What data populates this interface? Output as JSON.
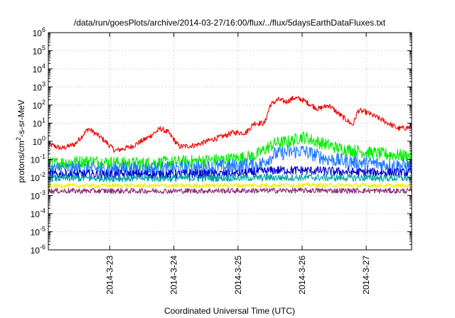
{
  "chart_data": {
    "type": "line",
    "title": "/data/run/goesPlots/archive/2014-03-27/16:00/flux/../flux/5daysEarthDataFluxes.txt",
    "xlabel": "Coordinated Universal Time (UTC)",
    "ylabel_main": "protons/cm",
    "ylabel_sup": "2",
    "ylabel_rest": "-s-sr-MeV",
    "yscale": "log",
    "ylim": [
      1e-06,
      1000000.0
    ],
    "grid": true,
    "xlim": [
      "2014-03-22T01:00",
      "2014-03-27T17:00"
    ],
    "x_ticks": [
      {
        "label": "2014-3-23",
        "t": "2014-03-23T00:00"
      },
      {
        "label": "2014-3-24",
        "t": "2014-03-24T00:00"
      },
      {
        "label": "2014-3-25",
        "t": "2014-03-25T00:00"
      },
      {
        "label": "2014-3-26",
        "t": "2014-03-26T00:00"
      },
      {
        "label": "2014-3-27",
        "t": "2014-03-27T00:00"
      }
    ],
    "y_ticks": [
      {
        "base": "10",
        "exp": "-6"
      },
      {
        "base": "10",
        "exp": "-5"
      },
      {
        "base": "10",
        "exp": "-4"
      },
      {
        "base": "10",
        "exp": "-3"
      },
      {
        "base": "10",
        "exp": "-2"
      },
      {
        "base": "10",
        "exp": "-1"
      },
      {
        "base": "10",
        "exp": "0"
      },
      {
        "base": "10",
        "exp": "1"
      },
      {
        "base": "10",
        "exp": "2"
      },
      {
        "base": "10",
        "exp": "3"
      },
      {
        "base": "10",
        "exp": "4"
      },
      {
        "base": "10",
        "exp": "5"
      },
      {
        "base": "10",
        "exp": "6"
      }
    ],
    "series": [
      {
        "color": "#ee0000",
        "noise": 0.15,
        "points": [
          [
            "2014-03-22T01:00",
            0.7
          ],
          [
            "2014-03-22T06:00",
            0.4
          ],
          [
            "2014-03-22T11:00",
            0.7
          ],
          [
            "2014-03-22T16:00",
            5
          ],
          [
            "2014-03-22T21:00",
            1.5
          ],
          [
            "2014-03-23T02:00",
            0.3
          ],
          [
            "2014-03-23T08:00",
            0.5
          ],
          [
            "2014-03-23T14:00",
            1.5
          ],
          [
            "2014-03-23T19:00",
            5
          ],
          [
            "2014-03-23T22:00",
            3
          ],
          [
            "2014-03-24T02:00",
            0.5
          ],
          [
            "2014-03-24T08:00",
            0.6
          ],
          [
            "2014-03-24T14:00",
            1.2
          ],
          [
            "2014-03-24T19:00",
            2
          ],
          [
            "2014-03-24T22:00",
            3
          ],
          [
            "2014-03-25T03:00",
            3
          ],
          [
            "2014-03-25T06:00",
            10
          ],
          [
            "2014-03-25T10:00",
            10
          ],
          [
            "2014-03-25T12:00",
            100
          ],
          [
            "2014-03-25T15:00",
            200
          ],
          [
            "2014-03-25T18:00",
            150
          ],
          [
            "2014-03-25T21:00",
            250
          ],
          [
            "2014-03-26T00:00",
            200
          ],
          [
            "2014-03-26T06:00",
            60
          ],
          [
            "2014-03-26T10:00",
            100
          ],
          [
            "2014-03-26T14:00",
            30
          ],
          [
            "2014-03-26T19:00",
            8
          ],
          [
            "2014-03-26T21:00",
            50
          ],
          [
            "2014-03-27T00:00",
            40
          ],
          [
            "2014-03-27T06:00",
            15
          ],
          [
            "2014-03-27T12:00",
            5
          ],
          [
            "2014-03-27T17:00",
            6
          ]
        ]
      },
      {
        "color": "#00ee00",
        "noise": 0.35,
        "points": [
          [
            "2014-03-22T01:00",
            0.06
          ],
          [
            "2014-03-22T16:00",
            0.08
          ],
          [
            "2014-03-23T08:00",
            0.06
          ],
          [
            "2014-03-24T00:00",
            0.07
          ],
          [
            "2014-03-24T20:00",
            0.1
          ],
          [
            "2014-03-25T06:00",
            0.15
          ],
          [
            "2014-03-25T14:00",
            0.8
          ],
          [
            "2014-03-25T20:00",
            1.0
          ],
          [
            "2014-03-26T00:00",
            1.8
          ],
          [
            "2014-03-26T06:00",
            0.9
          ],
          [
            "2014-03-26T14:00",
            0.4
          ],
          [
            "2014-03-26T20:00",
            0.3
          ],
          [
            "2014-03-27T06:00",
            0.2
          ],
          [
            "2014-03-27T17:00",
            0.15
          ]
        ]
      },
      {
        "color": "#1e78ff",
        "noise": 0.4,
        "points": [
          [
            "2014-03-22T01:00",
            0.03
          ],
          [
            "2014-03-23T00:00",
            0.03
          ],
          [
            "2014-03-24T00:00",
            0.03
          ],
          [
            "2014-03-24T20:00",
            0.04
          ],
          [
            "2014-03-25T08:00",
            0.05
          ],
          [
            "2014-03-25T14:00",
            0.2
          ],
          [
            "2014-03-26T00:00",
            0.3
          ],
          [
            "2014-03-26T10:00",
            0.1
          ],
          [
            "2014-03-26T20:00",
            0.07
          ],
          [
            "2014-03-27T17:00",
            0.04
          ]
        ]
      },
      {
        "color": "#0000cc",
        "noise": 0.25,
        "points": [
          [
            "2014-03-22T01:00",
            0.015
          ],
          [
            "2014-03-23T12:00",
            0.015
          ],
          [
            "2014-03-25T00:00",
            0.016
          ],
          [
            "2014-03-25T14:00",
            0.025
          ],
          [
            "2014-03-26T00:00",
            0.025
          ],
          [
            "2014-03-26T18:00",
            0.02
          ],
          [
            "2014-03-27T17:00",
            0.018
          ]
        ]
      },
      {
        "color": "#00a5a5",
        "noise": 0.2,
        "points": [
          [
            "2014-03-22T01:00",
            0.009
          ],
          [
            "2014-03-24T00:00",
            0.009
          ],
          [
            "2014-03-26T00:00",
            0.01
          ],
          [
            "2014-03-27T17:00",
            0.009
          ]
        ]
      },
      {
        "color": "#f0f000",
        "noise": 0.12,
        "points": [
          [
            "2014-03-22T01:00",
            0.0035
          ],
          [
            "2014-03-24T00:00",
            0.0035
          ],
          [
            "2014-03-26T00:00",
            0.0038
          ],
          [
            "2014-03-27T17:00",
            0.0035
          ]
        ]
      },
      {
        "color": "#8b2e7a",
        "noise": 0.15,
        "points": [
          [
            "2014-03-22T01:00",
            0.0018
          ],
          [
            "2014-03-24T00:00",
            0.0018
          ],
          [
            "2014-03-26T00:00",
            0.0019
          ],
          [
            "2014-03-27T17:00",
            0.0018
          ]
        ]
      }
    ]
  }
}
